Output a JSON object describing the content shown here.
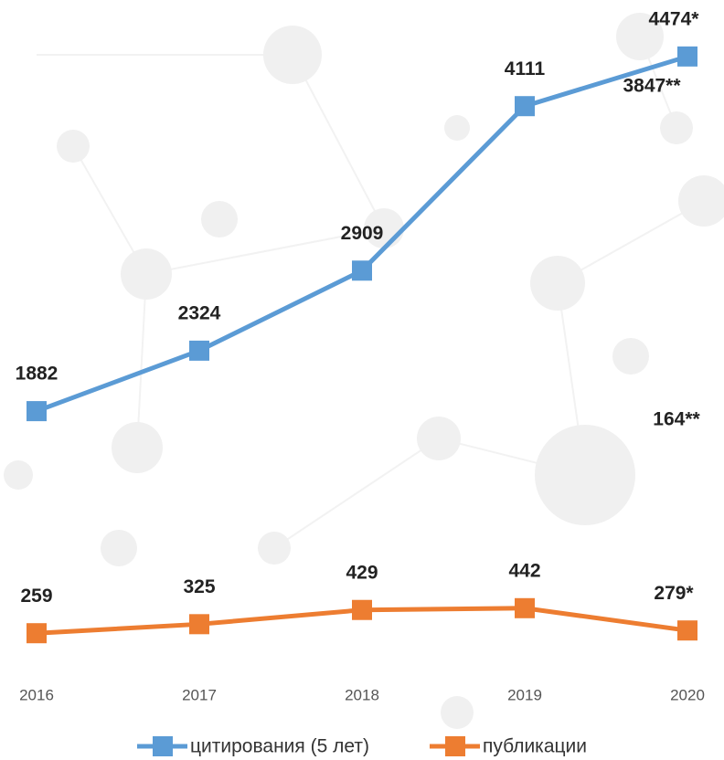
{
  "chart_data": {
    "type": "line",
    "categories": [
      "2016",
      "2017",
      "2018",
      "2019",
      "2020"
    ],
    "series": [
      {
        "name": "цитирования (5 лет)",
        "color": "#5b9bd5",
        "values": [
          1882,
          2324,
          2909,
          4111,
          4474
        ],
        "value_labels": [
          "1882",
          "2324",
          "2909",
          "4111",
          "4474*"
        ]
      },
      {
        "name": "публикации",
        "color": "#ed7d31",
        "values": [
          259,
          325,
          429,
          442,
          279
        ],
        "value_labels": [
          "259",
          "325",
          "429",
          "442",
          "279*"
        ]
      }
    ],
    "annotations": [
      "3847**",
      "164**"
    ],
    "ylim": [
      0,
      4800
    ]
  }
}
